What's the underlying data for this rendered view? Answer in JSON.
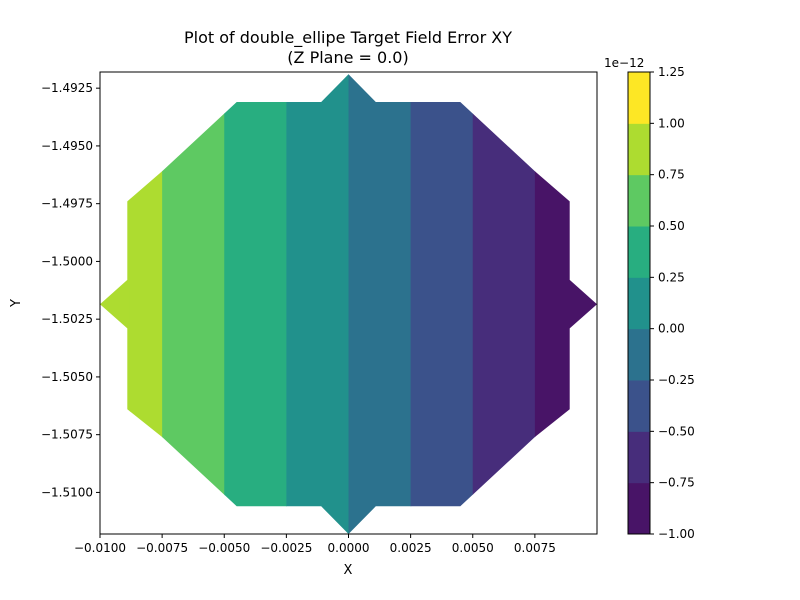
{
  "chart_data": {
    "type": "contour",
    "title": "Plot of double_ellipe Target Field Error XY",
    "subtitle": "(Z Plane = 0.0)",
    "xlabel": "X",
    "ylabel": "Y",
    "xlim": [
      -0.01,
      0.01
    ],
    "ylim": [
      -1.5118,
      -1.4918
    ],
    "xticks": [
      "-0.0100",
      "-0.0075",
      "-0.0050",
      "-0.0025",
      "0.0000",
      "0.0025",
      "0.0050",
      "0.0075"
    ],
    "yticks": [
      "-1.4925",
      "-1.4950",
      "-1.4975",
      "-1.5000",
      "-1.5025",
      "-1.5050",
      "-1.5075",
      "-1.5100"
    ],
    "colorbar": {
      "multiplier": "1e−12",
      "ticks": [
        "-1.00",
        "-0.75",
        "-0.50",
        "-0.25",
        "0.00",
        "0.25",
        "0.50",
        "0.75",
        "1.00",
        "1.25"
      ],
      "levels": [
        -1.0,
        -0.75,
        -0.5,
        -0.25,
        0.0,
        0.25,
        0.5,
        0.75,
        1.0,
        1.25
      ],
      "colors": [
        "#481467",
        "#472d7b",
        "#3b528b",
        "#2c728e",
        "#21918c",
        "#28ae80",
        "#5ec962",
        "#addc30",
        "#fde725"
      ]
    },
    "bands": [
      {
        "x": [
          -0.01,
          -0.0088
        ],
        "level": 0.875,
        "color": "#addc30"
      },
      {
        "x": [
          -0.0088,
          -0.0075
        ],
        "level": 0.875,
        "color": "#addc30"
      },
      {
        "x": [
          -0.0075,
          -0.005
        ],
        "level": 0.625,
        "color": "#5ec962"
      },
      {
        "x": [
          -0.005,
          -0.0025
        ],
        "level": 0.375,
        "color": "#28ae80"
      },
      {
        "x": [
          -0.0025,
          0.0
        ],
        "level": 0.125,
        "color": "#21918c"
      },
      {
        "x": [
          0.0,
          0.0025
        ],
        "level": -0.125,
        "color": "#2c728e"
      },
      {
        "x": [
          0.0025,
          0.005
        ],
        "level": -0.375,
        "color": "#3b528b"
      },
      {
        "x": [
          0.005,
          0.0075
        ],
        "level": -0.625,
        "color": "#472d7b"
      },
      {
        "x": [
          0.0075,
          0.01
        ],
        "level": -0.875,
        "color": "#481467"
      }
    ],
    "domain_outline": [
      [
        -0.01,
        -1.50185
      ],
      [
        -0.0089,
        -1.5008
      ],
      [
        -0.0089,
        -1.4974
      ],
      [
        -0.0075,
        -1.4961
      ],
      [
        -0.0045,
        -1.4931
      ],
      [
        -0.0011,
        -1.4931
      ],
      [
        0.0,
        -1.4919
      ],
      [
        0.0011,
        -1.4931
      ],
      [
        0.0045,
        -1.4931
      ],
      [
        0.0075,
        -1.4961
      ],
      [
        0.0089,
        -1.4974
      ],
      [
        0.0089,
        -1.5008
      ],
      [
        0.01,
        -1.50185
      ],
      [
        0.0089,
        -1.5029
      ],
      [
        0.0089,
        -1.5064
      ],
      [
        0.0075,
        -1.5076
      ],
      [
        0.0045,
        -1.5106
      ],
      [
        0.0011,
        -1.5106
      ],
      [
        0.0,
        -1.5118
      ],
      [
        -0.0011,
        -1.5106
      ],
      [
        -0.0045,
        -1.5106
      ],
      [
        -0.0075,
        -1.5076
      ],
      [
        -0.0089,
        -1.5064
      ],
      [
        -0.0089,
        -1.5029
      ]
    ]
  }
}
